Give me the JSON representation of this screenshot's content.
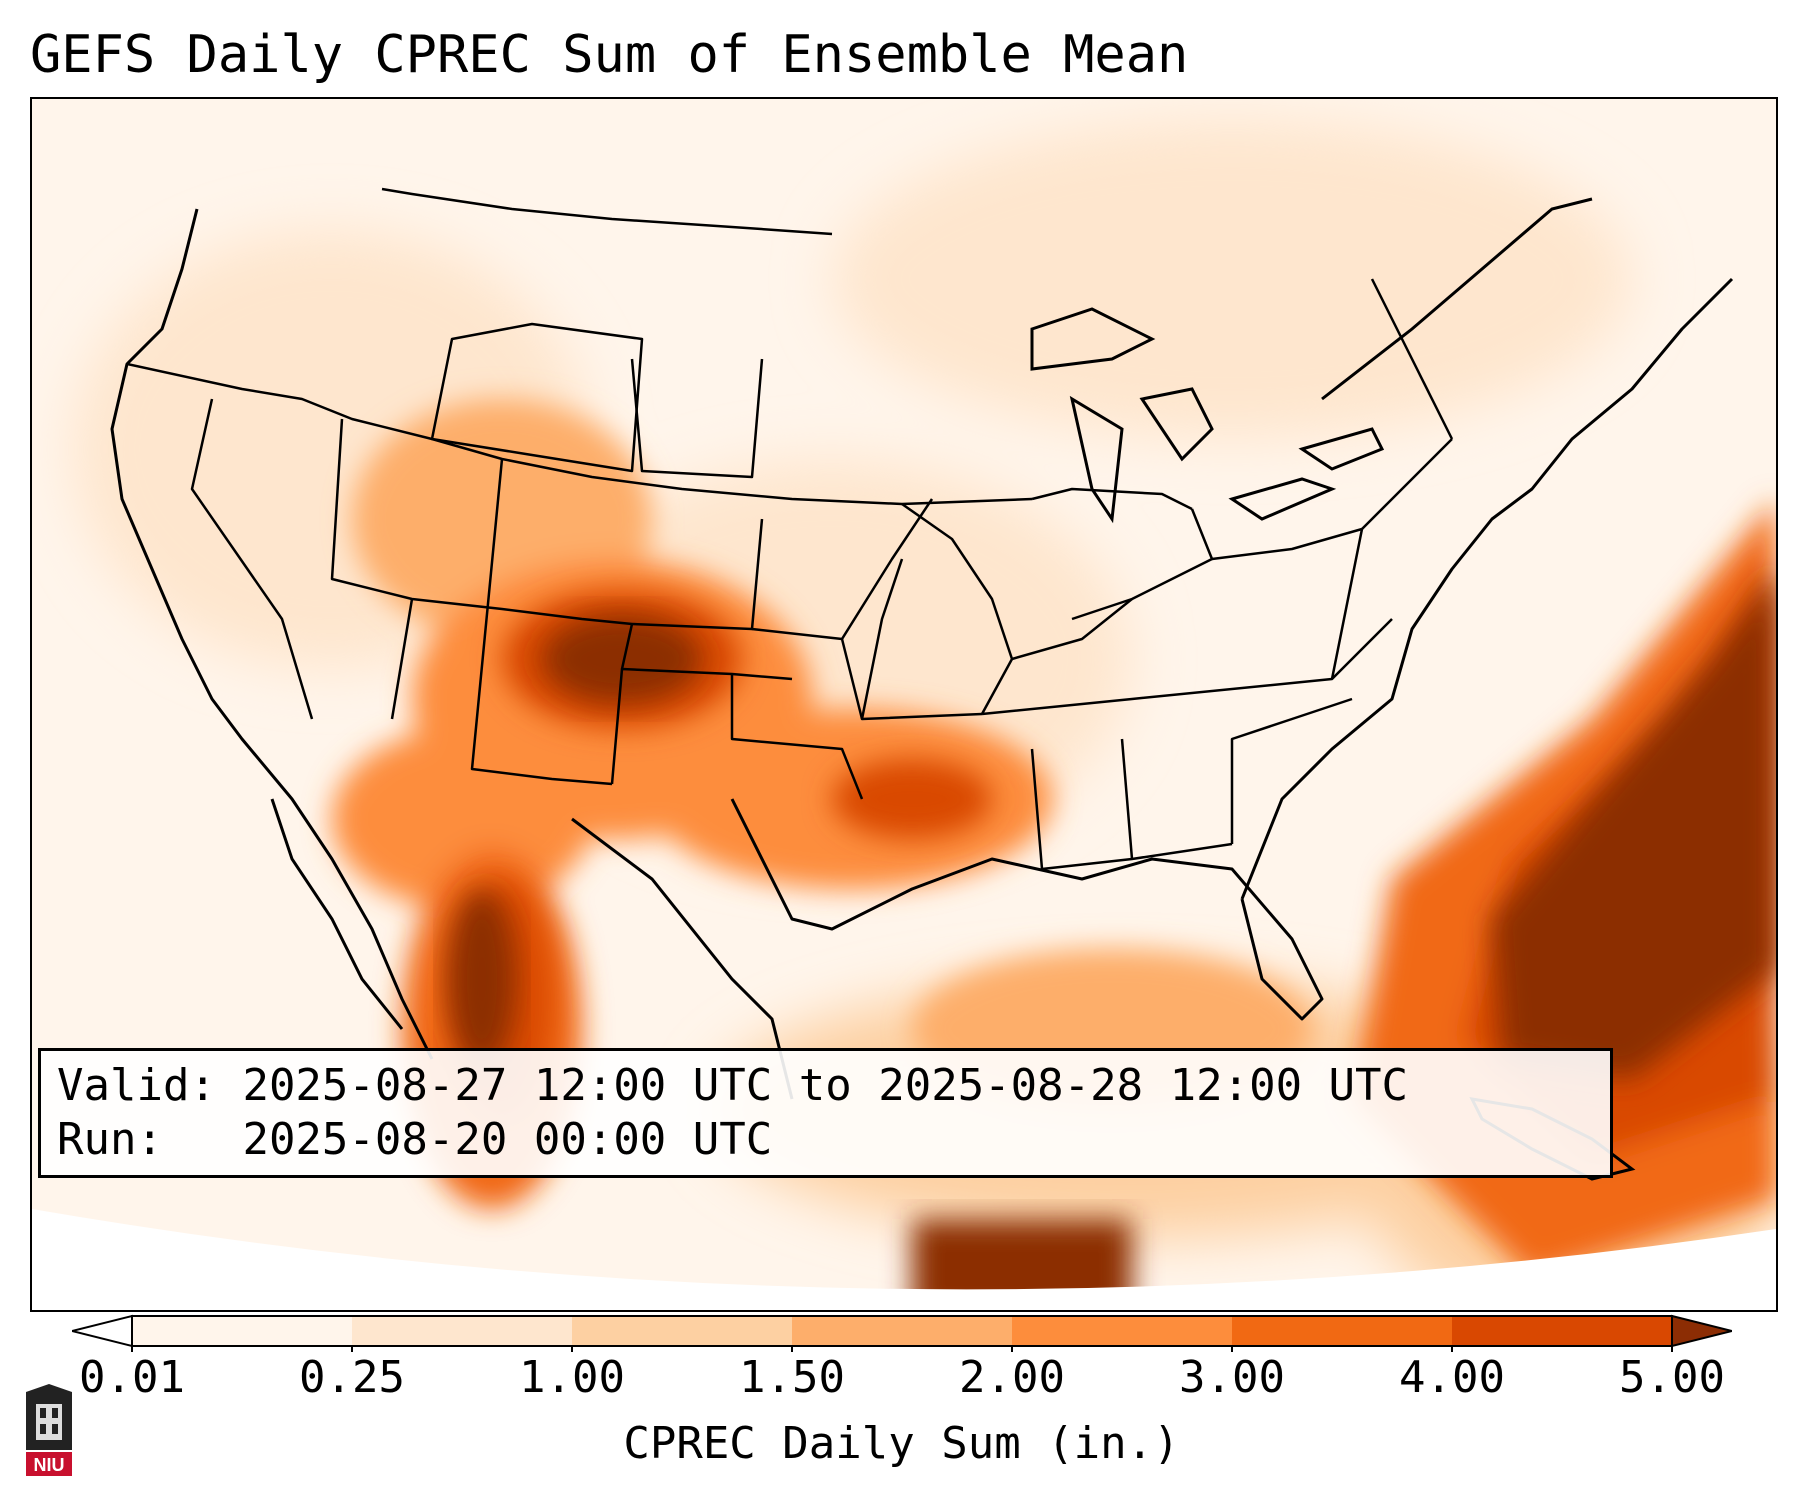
{
  "title": "GEFS Daily CPREC Sum of Ensemble Mean",
  "info": {
    "valid_label": "Valid:",
    "valid_value": "2025-08-27 12:00 UTC to 2025-08-28 12:00 UTC",
    "run_label": "Run:",
    "run_value": "2025-08-20 00:00 UTC"
  },
  "colorbar": {
    "label": "CPREC Daily Sum (in.)",
    "ticks": [
      "0.01",
      "0.25",
      "1.00",
      "1.50",
      "2.00",
      "3.00",
      "4.00",
      "5.00"
    ],
    "colors": [
      "#fff5eb",
      "#fee6ce",
      "#fdd0a2",
      "#fdae6b",
      "#fd8d3c",
      "#f16913",
      "#d94801",
      "#8c2d04"
    ],
    "extend": "both"
  },
  "logo": {
    "text": "NIU",
    "color": "#c8102e"
  }
}
